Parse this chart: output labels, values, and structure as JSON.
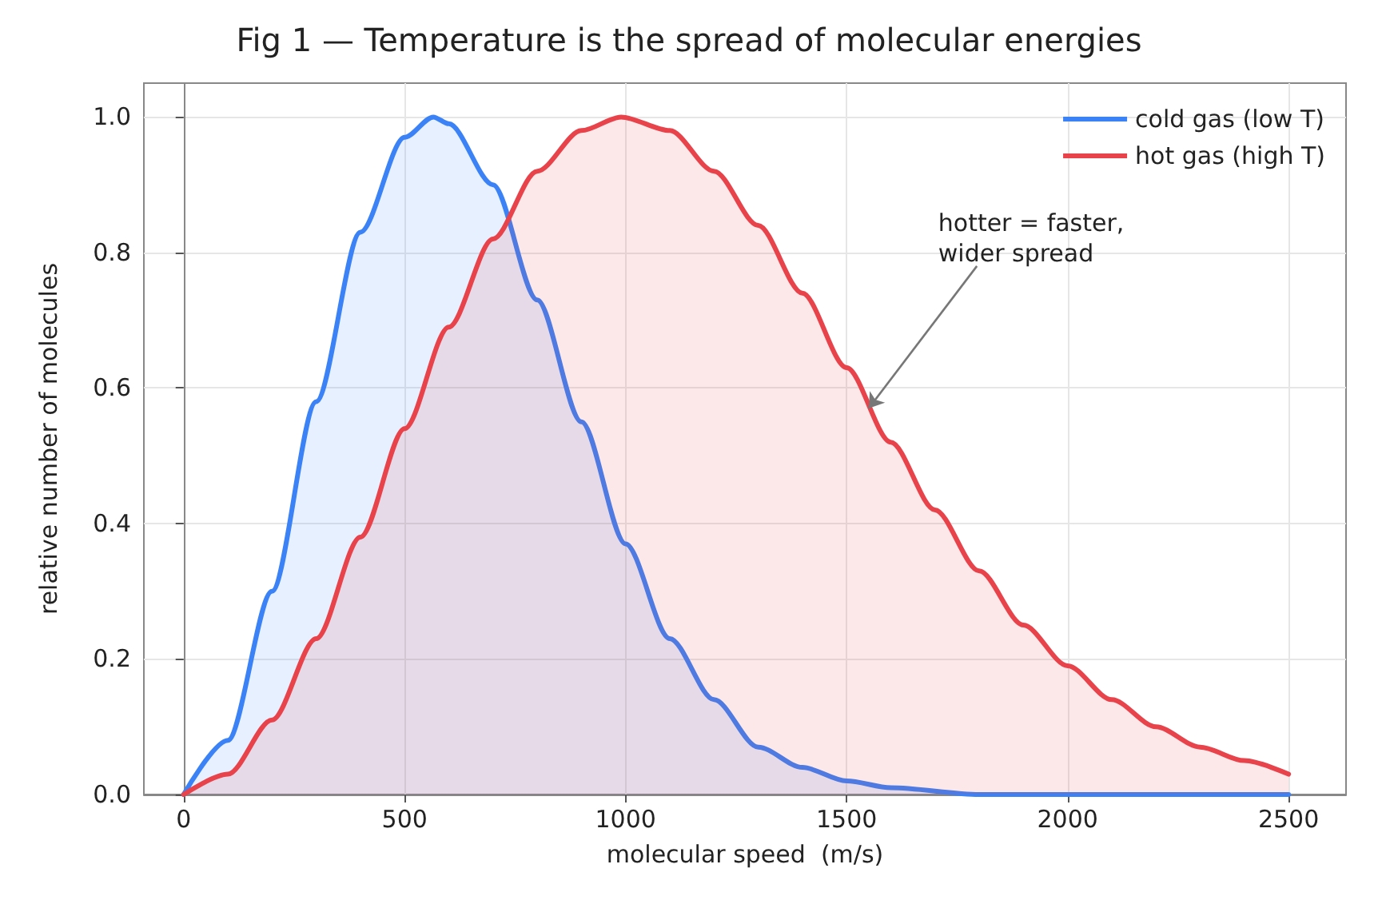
{
  "chart_data": {
    "type": "line",
    "title": "Fig 1 — Temperature is the spread of molecular energies",
    "xlabel": "molecular speed  (m/s)",
    "ylabel": "relative number of molecules",
    "series": [
      {
        "name": "cold gas (low T)",
        "color": "#3b82f6",
        "x": [
          0,
          100,
          200,
          300,
          400,
          500,
          565,
          600,
          700,
          800,
          900,
          1000,
          1100,
          1200,
          1300,
          1400,
          1500,
          1600,
          1800,
          2000,
          2500
        ],
        "values": [
          0,
          0.08,
          0.3,
          0.58,
          0.83,
          0.97,
          1,
          0.99,
          0.9,
          0.73,
          0.55,
          0.37,
          0.23,
          0.14,
          0.07,
          0.04,
          0.02,
          0.01,
          0,
          0,
          0
        ]
      },
      {
        "name": "hot gas (high T)",
        "color": "#e8424a",
        "x": [
          0,
          100,
          200,
          300,
          400,
          500,
          600,
          700,
          800,
          900,
          990,
          1100,
          1200,
          1300,
          1400,
          1500,
          1600,
          1700,
          1800,
          1900,
          2000,
          2100,
          2200,
          2300,
          2400,
          2500
        ],
        "values": [
          0,
          0.03,
          0.11,
          0.23,
          0.38,
          0.54,
          0.69,
          0.82,
          0.92,
          0.98,
          1,
          0.98,
          0.92,
          0.84,
          0.74,
          0.63,
          0.52,
          0.42,
          0.33,
          0.25,
          0.19,
          0.14,
          0.1,
          0.07,
          0.05,
          0.03
        ]
      }
    ],
    "annotations": [
      {
        "text": "hotter = faster,\nwider spread",
        "x": 1550,
        "y": 0.57
      }
    ],
    "xlim": [
      -90,
      2630
    ],
    "xticks": [
      0,
      500,
      1000,
      1500,
      2000,
      2500
    ],
    "ylim": [
      0,
      1.05
    ],
    "yticks": [
      {
        "value": 0,
        "label": "0.0"
      },
      {
        "value": 0.2,
        "label": "0.2"
      },
      {
        "value": 0.4,
        "label": "0.4"
      },
      {
        "value": 0.6,
        "label": "0.6"
      },
      {
        "value": 0.8,
        "label": "0.8"
      },
      {
        "value": 1,
        "label": "1.0"
      }
    ],
    "grid": true,
    "legend": "top right",
    "marker": "none",
    "line_style": "solid"
  }
}
